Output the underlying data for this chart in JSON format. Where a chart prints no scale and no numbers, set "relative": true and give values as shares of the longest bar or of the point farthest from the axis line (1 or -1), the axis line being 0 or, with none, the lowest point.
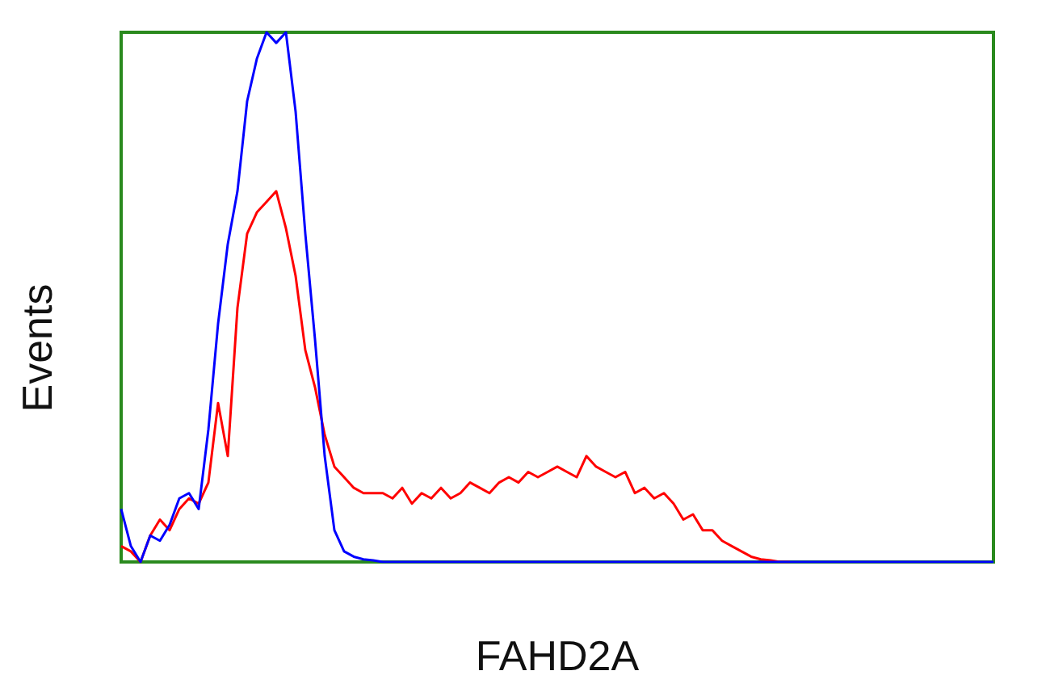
{
  "chart_data": {
    "type": "line",
    "relative": true,
    "xlabel": "FAHD2A",
    "ylabel": "Events",
    "marker": "none",
    "line_style": "solid",
    "categories": [
      null,
      null,
      null,
      null,
      null,
      null,
      null,
      null,
      null,
      null,
      null,
      null,
      null,
      null,
      null,
      null,
      null,
      null,
      null,
      null,
      null,
      null,
      null,
      null,
      null,
      null,
      null,
      null,
      null,
      null,
      null,
      null,
      null,
      null,
      null,
      null,
      null,
      null,
      null,
      null,
      null,
      null,
      null,
      null,
      null,
      null,
      null,
      null,
      null,
      null,
      null,
      null,
      null,
      null,
      null,
      null,
      null,
      null,
      null,
      null,
      null,
      null,
      null,
      null,
      null,
      null,
      null,
      null,
      null,
      null,
      null,
      null,
      null,
      null,
      null,
      null,
      null,
      null,
      null,
      null,
      null,
      null,
      null,
      null,
      null,
      null,
      null,
      null,
      null,
      null,
      null
    ],
    "series": [
      {
        "color": "#ff0000",
        "values": [
          0.03,
          0.02,
          0,
          0.05,
          0.08,
          0.06,
          0.1,
          0.12,
          0.11,
          0.15,
          0.3,
          0.2,
          0.48,
          0.62,
          0.66,
          0.68,
          0.7,
          0.63,
          0.54,
          0.4,
          0.33,
          0.24,
          0.18,
          0.16,
          0.14,
          0.13,
          0.13,
          0.13,
          0.12,
          0.14,
          0.11,
          0.13,
          0.12,
          0.14,
          0.12,
          0.13,
          0.15,
          0.14,
          0.13,
          0.15,
          0.16,
          0.15,
          0.17,
          0.16,
          0.17,
          0.18,
          0.17,
          0.16,
          0.2,
          0.18,
          0.17,
          0.16,
          0.17,
          0.13,
          0.14,
          0.12,
          0.13,
          0.11,
          0.08,
          0.09,
          0.06,
          0.06,
          0.04,
          0.03,
          0.02,
          0.01,
          0.005,
          0.003,
          0,
          0,
          null,
          null,
          null,
          null,
          null,
          null,
          null,
          null,
          null,
          null,
          null,
          null,
          null,
          null,
          null,
          null,
          null,
          null,
          null,
          null,
          null
        ]
      },
      {
        "color": "#0000ff",
        "values": [
          0.1,
          0.03,
          0,
          0.05,
          0.04,
          0.07,
          0.12,
          0.13,
          0.1,
          0.25,
          0.45,
          0.6,
          0.7,
          0.87,
          0.95,
          1,
          0.98,
          1,
          0.85,
          0.62,
          0.42,
          0.2,
          0.06,
          0.02,
          0.01,
          0.005,
          0.003,
          0,
          0,
          0,
          0,
          0,
          0,
          0,
          0,
          0,
          0,
          0,
          0,
          0,
          0,
          0,
          0,
          0,
          0,
          0,
          0,
          0,
          0,
          0,
          0,
          0,
          0,
          0,
          0,
          0,
          0,
          0,
          0,
          0,
          0,
          0,
          0,
          0,
          0,
          0,
          0,
          0,
          0,
          0,
          0,
          0,
          0,
          0,
          0,
          0,
          0,
          0,
          0,
          0,
          0,
          0,
          0,
          0,
          0,
          0,
          0,
          0,
          0,
          0,
          0
        ]
      }
    ]
  }
}
